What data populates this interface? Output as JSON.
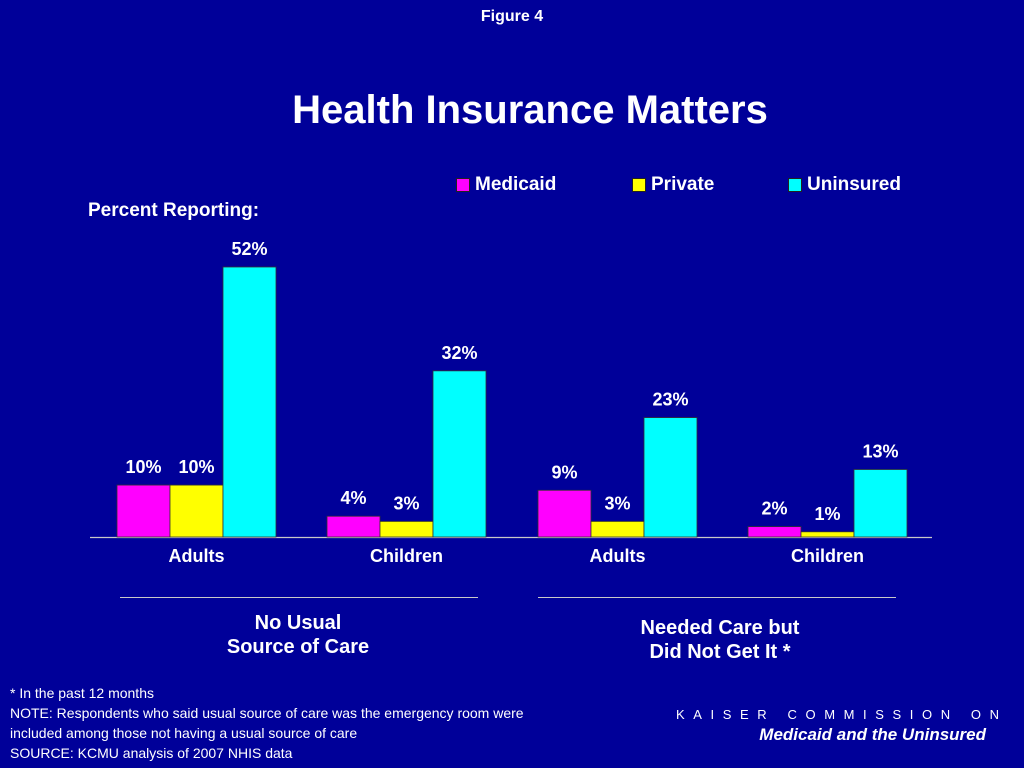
{
  "figure_label": "Figure 4",
  "title": "Health Insurance Matters",
  "ylabel": "Percent Reporting:",
  "legend": [
    {
      "name": "Medicaid",
      "color": "#ff00ff"
    },
    {
      "name": "Private",
      "color": "#ffff00"
    },
    {
      "name": "Uninsured",
      "color": "#00ffff"
    }
  ],
  "groups": [
    {
      "label_line1": "No Usual",
      "label_line2": "Source of Care"
    },
    {
      "label_line1": "Needed Care but",
      "label_line2": "Did Not Get It *"
    }
  ],
  "footnotes": [
    "* In the past 12 months",
    "NOTE: Respondents who said usual source of care was the emergency room were",
    "included among those not having a usual source of care",
    "SOURCE: KCMU analysis of 2007 NHIS data"
  ],
  "brand": {
    "line1": "KAISER COMMISSION ON",
    "line2": "Medicaid and the Uninsured"
  },
  "chart_data": {
    "type": "bar",
    "categories": [
      "Adults",
      "Children",
      "Adults",
      "Children"
    ],
    "series": [
      {
        "name": "Medicaid",
        "values": [
          10,
          4,
          9,
          2
        ],
        "labels": [
          "10%",
          "4%",
          "9%",
          "2%"
        ],
        "color": "#ff00ff"
      },
      {
        "name": "Private",
        "values": [
          10,
          3,
          3,
          1
        ],
        "labels": [
          "10%",
          "3%",
          "3%",
          "1%"
        ],
        "color": "#ffff00"
      },
      {
        "name": "Uninsured",
        "values": [
          52,
          32,
          23,
          13
        ],
        "labels": [
          "52%",
          "32%",
          "23%",
          "13%"
        ],
        "color": "#00ffff"
      }
    ],
    "ylim": [
      0,
      52
    ],
    "grid": false,
    "legend_position": "top-right"
  }
}
